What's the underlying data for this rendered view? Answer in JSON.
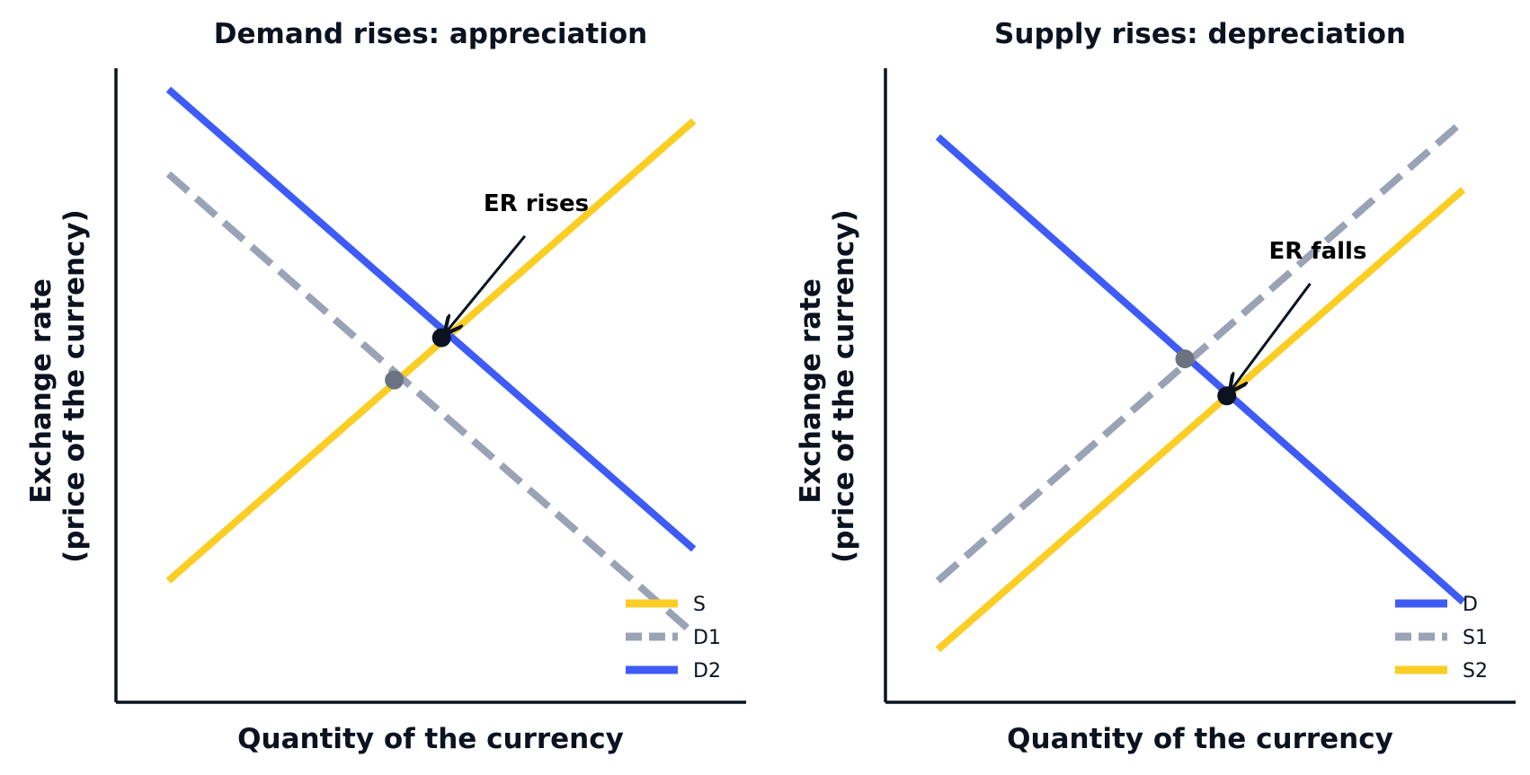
{
  "colors": {
    "supply": "#fccd25",
    "demand": "#3e5bf5",
    "old_curve": "#9aa3b5",
    "old_point": "#6b7280",
    "new_point": "#0b1220",
    "axis": "#0b1220"
  },
  "chart_data": [
    {
      "type": "line",
      "title": "Demand rises: appreciation",
      "xlabel": "Quantity of the currency",
      "ylabel": "Exchange rate\n(price of the currency)",
      "ylabel_lines": [
        "Exchange rate",
        "(price of the currency)"
      ],
      "xlim": [
        0,
        12
      ],
      "ylim": [
        0,
        12
      ],
      "ticks": "none",
      "grid": false,
      "legend_position": "lower-right",
      "series": [
        {
          "name": "S",
          "style": "solid",
          "color": "#fccd25",
          "x": [
            1,
            11
          ],
          "y": [
            2.3,
            11
          ]
        },
        {
          "name": "D1",
          "style": "dashed",
          "color": "#9aa3b5",
          "x": [
            1,
            11
          ],
          "y": [
            10,
            1.3
          ]
        },
        {
          "name": "D2",
          "style": "solid",
          "color": "#3e5bf5",
          "x": [
            1,
            11
          ],
          "y": [
            11.6,
            2.9
          ]
        }
      ],
      "points": [
        {
          "role": "old-equilibrium",
          "x": 5.3,
          "y": 6.1,
          "color": "#6b7280"
        },
        {
          "role": "new-equilibrium",
          "x": 6.2,
          "y": 6.9,
          "color": "#0b1220"
        }
      ],
      "annotation": {
        "text": "ER rises",
        "x": 7.0,
        "y": 9.3,
        "points_to": "new-equilibrium"
      }
    },
    {
      "type": "line",
      "title": "Supply rises: depreciation",
      "xlabel": "Quantity of the currency",
      "ylabel": "Exchange rate\n(price of the currency)",
      "ylabel_lines": [
        "Exchange rate",
        "(price of the currency)"
      ],
      "xlim": [
        0,
        12
      ],
      "ylim": [
        0,
        12
      ],
      "ticks": "none",
      "grid": false,
      "legend_position": "lower-right",
      "series": [
        {
          "name": "D",
          "style": "solid",
          "color": "#3e5bf5",
          "x": [
            1,
            11
          ],
          "y": [
            10.7,
            1.9
          ]
        },
        {
          "name": "S1",
          "style": "dashed",
          "color": "#9aa3b5",
          "x": [
            1,
            11
          ],
          "y": [
            2.3,
            11
          ]
        },
        {
          "name": "S2",
          "style": "solid",
          "color": "#fccd25",
          "x": [
            1,
            11
          ],
          "y": [
            1.0,
            9.7
          ]
        }
      ],
      "points": [
        {
          "role": "old-equilibrium",
          "x": 5.7,
          "y": 6.5,
          "color": "#6b7280"
        },
        {
          "role": "new-equilibrium",
          "x": 6.5,
          "y": 5.8,
          "color": "#0b1220"
        }
      ],
      "annotation": {
        "text": "ER falls",
        "x": 7.3,
        "y": 8.4,
        "points_to": "new-equilibrium"
      }
    }
  ]
}
